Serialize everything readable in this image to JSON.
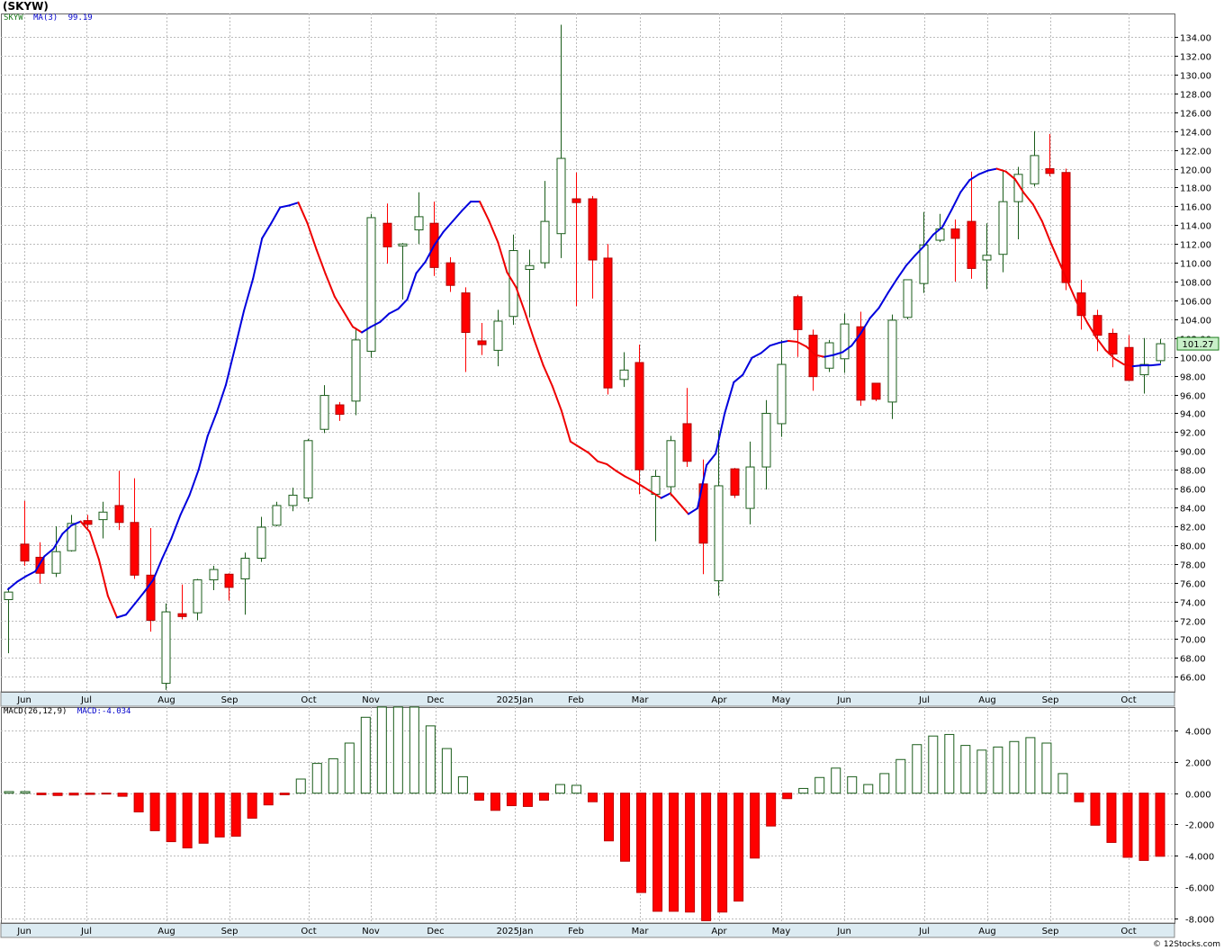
{
  "title": "(SKYW)",
  "price_legend": {
    "symbol": "SKYW",
    "ma_label": "MA(3)",
    "ma_value": "99.19"
  },
  "macd_legend": {
    "label": "MACD(26,12,9)",
    "value_label": "MACD:-4.034"
  },
  "last_price_label": "101.27",
  "footer": "© 12Stocks.com",
  "colors": {
    "up": "#1a5c1a",
    "down": "#ff0000",
    "ma_up": "#0000dd",
    "ma_down": "#ee0000",
    "grid": "#bbbbbb",
    "axis_bg": "#dcebf2",
    "last_price_bg": "#c8f0c8"
  },
  "chart_data": [
    {
      "type": "candlestick",
      "series_name": "SKYW",
      "x_labels": [
        "Jun",
        "Jul",
        "Aug",
        "Sep",
        "Oct",
        "Nov",
        "Dec",
        "2025Jan",
        "Feb",
        "Mar",
        "Apr",
        "May",
        "Jun",
        "Jul",
        "Aug",
        "Sep",
        "Oct"
      ],
      "y_ticks": [
        66,
        68,
        70,
        72,
        74,
        76,
        78,
        80,
        82,
        84,
        86,
        88,
        90,
        92,
        94,
        96,
        98,
        100,
        102,
        104,
        106,
        108,
        110,
        112,
        114,
        116,
        118,
        120,
        122,
        124,
        126,
        128,
        130,
        132,
        134
      ],
      "ylim": [
        64.4,
        136.5
      ],
      "grid": true,
      "candles": [
        {
          "o": 74.2,
          "h": 75.5,
          "l": 68.5,
          "c": 75.0
        },
        {
          "o": 80.1,
          "h": 84.7,
          "l": 77.8,
          "c": 78.3
        },
        {
          "o": 78.7,
          "h": 80.3,
          "l": 75.9,
          "c": 77.0
        },
        {
          "o": 77.0,
          "h": 82.0,
          "l": 76.6,
          "c": 79.3
        },
        {
          "o": 79.4,
          "h": 83.2,
          "l": 79.3,
          "c": 82.3
        },
        {
          "o": 82.6,
          "h": 83.2,
          "l": 81.8,
          "c": 82.2
        },
        {
          "o": 82.7,
          "h": 84.6,
          "l": 80.7,
          "c": 83.5
        },
        {
          "o": 84.2,
          "h": 87.9,
          "l": 81.6,
          "c": 82.4
        },
        {
          "o": 82.4,
          "h": 87.1,
          "l": 76.4,
          "c": 76.8
        },
        {
          "o": 76.8,
          "h": 81.8,
          "l": 70.8,
          "c": 72.0
        },
        {
          "o": 65.3,
          "h": 73.8,
          "l": 64.6,
          "c": 72.9
        },
        {
          "o": 72.7,
          "h": 75.8,
          "l": 72.1,
          "c": 72.4
        },
        {
          "o": 72.8,
          "h": 76.4,
          "l": 72.0,
          "c": 76.3
        },
        {
          "o": 76.3,
          "h": 77.8,
          "l": 75.2,
          "c": 77.4
        },
        {
          "o": 76.9,
          "h": 77.0,
          "l": 74.1,
          "c": 75.5
        },
        {
          "o": 76.4,
          "h": 79.2,
          "l": 72.6,
          "c": 78.6
        },
        {
          "o": 78.6,
          "h": 83.0,
          "l": 78.2,
          "c": 81.9
        },
        {
          "o": 82.1,
          "h": 84.6,
          "l": 82.0,
          "c": 84.2
        },
        {
          "o": 84.2,
          "h": 86.1,
          "l": 83.6,
          "c": 85.3
        },
        {
          "o": 85.0,
          "h": 91.3,
          "l": 84.6,
          "c": 91.1
        },
        {
          "o": 92.3,
          "h": 97.0,
          "l": 91.9,
          "c": 95.9
        },
        {
          "o": 94.9,
          "h": 95.2,
          "l": 93.2,
          "c": 93.9
        },
        {
          "o": 95.3,
          "h": 103.1,
          "l": 93.8,
          "c": 101.8
        },
        {
          "o": 100.6,
          "h": 115.2,
          "l": 99.9,
          "c": 114.8
        },
        {
          "o": 114.2,
          "h": 116.3,
          "l": 109.9,
          "c": 111.7
        },
        {
          "o": 111.8,
          "h": 112.1,
          "l": 106.1,
          "c": 112.0
        },
        {
          "o": 113.5,
          "h": 117.5,
          "l": 112.0,
          "c": 114.9
        },
        {
          "o": 114.2,
          "h": 116.5,
          "l": 108.6,
          "c": 109.5
        },
        {
          "o": 110.0,
          "h": 110.6,
          "l": 106.9,
          "c": 107.6
        },
        {
          "o": 106.8,
          "h": 107.4,
          "l": 98.4,
          "c": 102.6
        },
        {
          "o": 101.7,
          "h": 103.6,
          "l": 100.2,
          "c": 101.3
        },
        {
          "o": 100.7,
          "h": 105.0,
          "l": 99.0,
          "c": 103.8
        },
        {
          "o": 104.3,
          "h": 113.0,
          "l": 103.4,
          "c": 111.3
        },
        {
          "o": 109.3,
          "h": 111.4,
          "l": 104.2,
          "c": 109.7
        },
        {
          "o": 110.0,
          "h": 118.7,
          "l": 109.4,
          "c": 114.4
        },
        {
          "o": 113.1,
          "h": 135.3,
          "l": 110.5,
          "c": 121.1
        },
        {
          "o": 116.8,
          "h": 119.6,
          "l": 105.4,
          "c": 116.4
        },
        {
          "o": 116.8,
          "h": 117.1,
          "l": 106.2,
          "c": 110.3
        },
        {
          "o": 110.5,
          "h": 112.0,
          "l": 96.0,
          "c": 96.7
        },
        {
          "o": 97.6,
          "h": 100.5,
          "l": 96.8,
          "c": 98.6
        },
        {
          "o": 99.4,
          "h": 101.3,
          "l": 85.4,
          "c": 88.0
        },
        {
          "o": 85.4,
          "h": 88.0,
          "l": 80.4,
          "c": 87.3
        },
        {
          "o": 86.2,
          "h": 91.6,
          "l": 85.2,
          "c": 91.1
        },
        {
          "o": 92.9,
          "h": 96.7,
          "l": 88.3,
          "c": 88.9
        },
        {
          "o": 86.5,
          "h": 89.1,
          "l": 76.9,
          "c": 80.2
        },
        {
          "o": 76.2,
          "h": 92.2,
          "l": 74.6,
          "c": 86.3
        },
        {
          "o": 88.1,
          "h": 88.2,
          "l": 85.0,
          "c": 85.3
        },
        {
          "o": 83.9,
          "h": 91.0,
          "l": 82.2,
          "c": 88.3
        },
        {
          "o": 88.3,
          "h": 95.4,
          "l": 85.9,
          "c": 94.0
        },
        {
          "o": 92.9,
          "h": 101.8,
          "l": 91.5,
          "c": 99.2
        },
        {
          "o": 106.4,
          "h": 106.6,
          "l": 100.0,
          "c": 102.9
        },
        {
          "o": 102.3,
          "h": 102.9,
          "l": 96.4,
          "c": 97.9
        },
        {
          "o": 98.8,
          "h": 101.8,
          "l": 98.4,
          "c": 101.5
        },
        {
          "o": 99.8,
          "h": 104.6,
          "l": 98.3,
          "c": 103.5
        },
        {
          "o": 103.2,
          "h": 104.8,
          "l": 94.8,
          "c": 95.4
        },
        {
          "o": 97.2,
          "h": 97.2,
          "l": 95.3,
          "c": 95.5
        },
        {
          "o": 95.2,
          "h": 104.5,
          "l": 93.4,
          "c": 103.9
        },
        {
          "o": 104.2,
          "h": 108.2,
          "l": 104.0,
          "c": 108.2
        },
        {
          "o": 107.8,
          "h": 115.4,
          "l": 106.8,
          "c": 111.9
        },
        {
          "o": 112.4,
          "h": 115.2,
          "l": 112.2,
          "c": 113.6
        },
        {
          "o": 113.6,
          "h": 114.6,
          "l": 108.0,
          "c": 112.6
        },
        {
          "o": 114.4,
          "h": 119.7,
          "l": 108.3,
          "c": 109.4
        },
        {
          "o": 110.3,
          "h": 114.2,
          "l": 107.2,
          "c": 110.8
        },
        {
          "o": 110.9,
          "h": 119.8,
          "l": 109.0,
          "c": 116.5
        },
        {
          "o": 116.5,
          "h": 120.2,
          "l": 112.5,
          "c": 119.4
        },
        {
          "o": 118.4,
          "h": 124.0,
          "l": 118.1,
          "c": 121.4
        },
        {
          "o": 120.0,
          "h": 123.7,
          "l": 119.2,
          "c": 119.5
        },
        {
          "o": 119.6,
          "h": 120.0,
          "l": 107.1,
          "c": 107.9
        },
        {
          "o": 106.8,
          "h": 108.2,
          "l": 102.9,
          "c": 104.4
        },
        {
          "o": 104.4,
          "h": 105.0,
          "l": 100.6,
          "c": 102.3
        },
        {
          "o": 102.5,
          "h": 103.0,
          "l": 98.9,
          "c": 100.3
        },
        {
          "o": 101.0,
          "h": 102.3,
          "l": 97.5,
          "c": 97.5
        },
        {
          "o": 98.1,
          "h": 102.0,
          "l": 96.1,
          "c": 99.2
        },
        {
          "o": 99.6,
          "h": 101.9,
          "l": 99.3,
          "c": 101.4
        }
      ],
      "ma": [
        75.3,
        76.1,
        76.7,
        77.2,
        78.8,
        79.6,
        81.2,
        82.1,
        82.5,
        81.4,
        78.5,
        74.6,
        72.3,
        72.6,
        73.8,
        75.0,
        76.3,
        78.6,
        80.7,
        83.2,
        85.3,
        88.0,
        91.6,
        94.1,
        97.0,
        100.9,
        104.9,
        108.3,
        112.6,
        114.2,
        115.9,
        116.1,
        116.4,
        114.2,
        111.4,
        108.8,
        106.4,
        104.8,
        103.2,
        102.6,
        103.2,
        103.7,
        104.6,
        105.1,
        106.1,
        108.9,
        110.1,
        111.9,
        113.3,
        114.4,
        115.5,
        116.5,
        116.5,
        114.5,
        112.2,
        109.0,
        107.4,
        104.7,
        101.8,
        99.1,
        96.9,
        94.3,
        91.0,
        90.4,
        89.8,
        88.9,
        88.6,
        87.9,
        87.3,
        86.8,
        86.2,
        85.6,
        85.0,
        85.5,
        84.4,
        83.3,
        83.9,
        88.5,
        89.7,
        94.0,
        97.3,
        98.1,
        99.9,
        100.4,
        101.2,
        101.5,
        101.7,
        101.6,
        101.1,
        100.2,
        100.0,
        100.2,
        100.5,
        101.2,
        102.5,
        104.1,
        105.2,
        106.8,
        108.3,
        109.7,
        110.8,
        111.8,
        113.0,
        113.8,
        115.6,
        117.5,
        118.8,
        119.4,
        119.8,
        120.0,
        119.7,
        118.9,
        117.4,
        116.2,
        114.4,
        112.0,
        109.8,
        107.6,
        105.4,
        103.6,
        102.0,
        100.7,
        99.8,
        99.2,
        99.0,
        99.1,
        99.1,
        99.19
      ]
    },
    {
      "type": "bar",
      "series_name": "MACD(26,12,9)",
      "value_label": "MACD:-4.034",
      "y_ticks": [
        -8.0,
        -6.0,
        -4.0,
        -2.0,
        0.0,
        2.0,
        4.0
      ],
      "ylim": [
        -8.3,
        5.5
      ],
      "values": [
        0.1,
        0.1,
        -0.1,
        -0.15,
        -0.12,
        -0.08,
        -0.05,
        -0.2,
        -1.2,
        -2.4,
        -3.1,
        -3.5,
        -3.2,
        -2.8,
        -2.75,
        -1.6,
        -0.75,
        -0.1,
        0.9,
        1.9,
        2.2,
        3.2,
        4.85,
        5.5,
        5.5,
        5.5,
        4.3,
        2.85,
        1.05,
        -0.45,
        -1.1,
        -0.8,
        -0.85,
        -0.45,
        0.55,
        0.5,
        -0.55,
        -3.05,
        -4.35,
        -6.35,
        -7.55,
        -7.55,
        -7.6,
        -8.15,
        -7.6,
        -6.9,
        -4.15,
        -2.1,
        -0.35,
        0.3,
        1.0,
        1.6,
        1.05,
        0.55,
        1.25,
        2.15,
        3.1,
        3.65,
        3.75,
        3.05,
        2.75,
        2.95,
        3.3,
        3.55,
        3.2,
        1.25,
        -0.55,
        -2.05,
        -3.15,
        -4.1,
        -4.3,
        -4.034
      ]
    }
  ]
}
